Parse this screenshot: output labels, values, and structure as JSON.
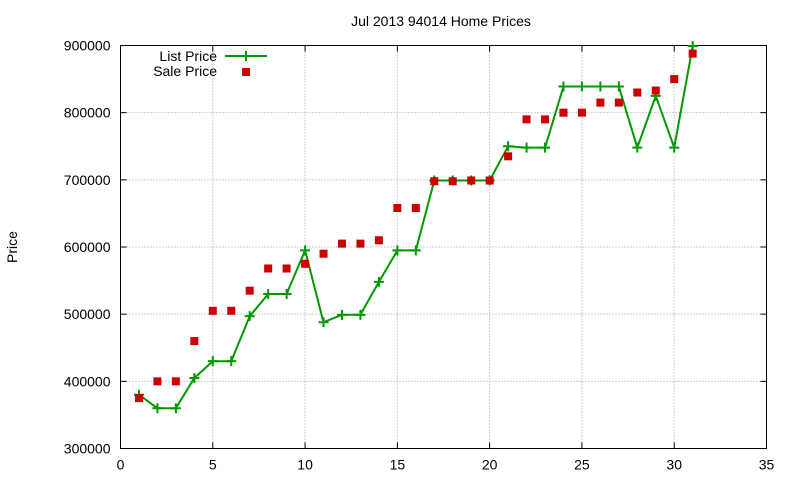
{
  "chart_data": {
    "type": "line",
    "title": "Jul 2013 94014 Home Prices",
    "xlabel": "",
    "ylabel": "Price",
    "xlim": [
      0,
      35
    ],
    "ylim": [
      300000,
      900000
    ],
    "xticks": [
      "0",
      "5",
      "10",
      "15",
      "20",
      "25",
      "30",
      "35"
    ],
    "yticks": [
      "300000",
      "400000",
      "500000",
      "600000",
      "700000",
      "800000",
      "900000"
    ],
    "grid": true,
    "legend_position": "top-left",
    "series": [
      {
        "name": "List Price",
        "style": "line-with-plus-markers",
        "color": "#009900",
        "x": [
          1,
          2,
          3,
          4,
          5,
          6,
          7,
          8,
          9,
          10,
          11,
          12,
          13,
          14,
          15,
          16,
          17,
          18,
          19,
          20,
          21,
          22,
          23,
          24,
          25,
          26,
          27,
          28,
          29,
          30,
          31
        ],
        "values": [
          380000,
          360000,
          360000,
          405000,
          430000,
          430000,
          497000,
          530000,
          530000,
          595000,
          488000,
          499000,
          499000,
          548000,
          595000,
          595000,
          699000,
          699000,
          699000,
          699000,
          750000,
          748000,
          748000,
          839000,
          839000,
          839000,
          839000,
          748000,
          825000,
          748000,
          899000
        ]
      },
      {
        "name": "Sale Price",
        "style": "square-markers",
        "color": "#cc0000",
        "x": [
          1,
          2,
          3,
          4,
          5,
          6,
          7,
          8,
          9,
          10,
          11,
          12,
          13,
          14,
          15,
          16,
          17,
          18,
          19,
          20,
          21,
          22,
          23,
          24,
          25,
          26,
          27,
          28,
          29,
          30,
          31
        ],
        "values": [
          375000,
          400000,
          400000,
          460000,
          505000,
          505000,
          535000,
          568000,
          568000,
          575000,
          590000,
          605000,
          605000,
          610000,
          658000,
          658000,
          698000,
          698000,
          699000,
          699000,
          735000,
          790000,
          790000,
          800000,
          800000,
          815000,
          815000,
          830000,
          833000,
          850000,
          888000
        ]
      }
    ]
  }
}
